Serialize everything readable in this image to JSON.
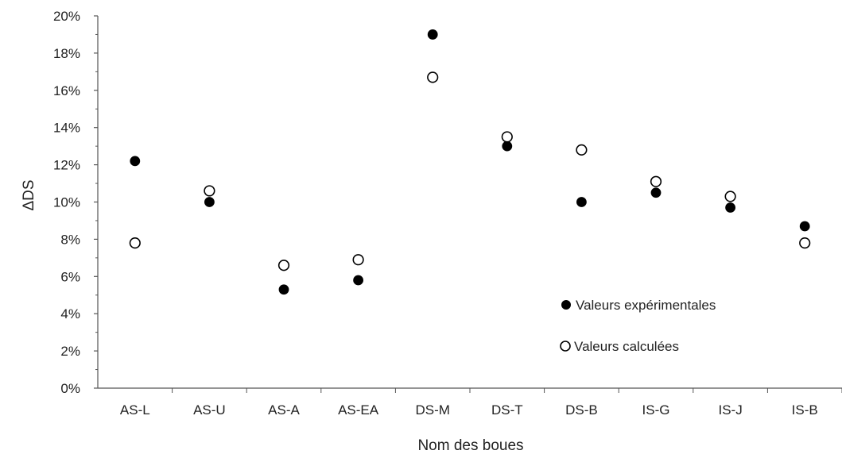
{
  "chart_data": {
    "type": "scatter",
    "title": "",
    "xlabel": "Nom des boues",
    "ylabel": "ΔDS",
    "ylim": [
      0,
      0.2
    ],
    "yticks": [
      0,
      0.02,
      0.04,
      0.06,
      0.08,
      0.1,
      0.12,
      0.14,
      0.16,
      0.18,
      0.2
    ],
    "ytick_labels": [
      "0%",
      "2%",
      "4%",
      "6%",
      "8%",
      "10%",
      "12%",
      "14%",
      "16%",
      "18%",
      "20%"
    ],
    "grid": false,
    "legend_position": "bottom-right",
    "categories": [
      "AS-L",
      "AS-U",
      "AS-A",
      "AS-EA",
      "DS-M",
      "DS-T",
      "DS-B",
      "IS-G",
      "IS-J",
      "IS-B"
    ],
    "series": [
      {
        "name": "Valeurs expérimentales",
        "marker": "filled-circle",
        "color": "#000000",
        "values": [
          0.122,
          0.1,
          0.053,
          0.058,
          0.19,
          0.13,
          0.1,
          0.105,
          0.097,
          0.087
        ]
      },
      {
        "name": "Valeurs calculées",
        "marker": "open-circle",
        "color": "#000000",
        "values": [
          0.078,
          0.106,
          0.066,
          0.069,
          0.167,
          0.135,
          0.128,
          0.111,
          0.103,
          0.078
        ]
      }
    ]
  }
}
